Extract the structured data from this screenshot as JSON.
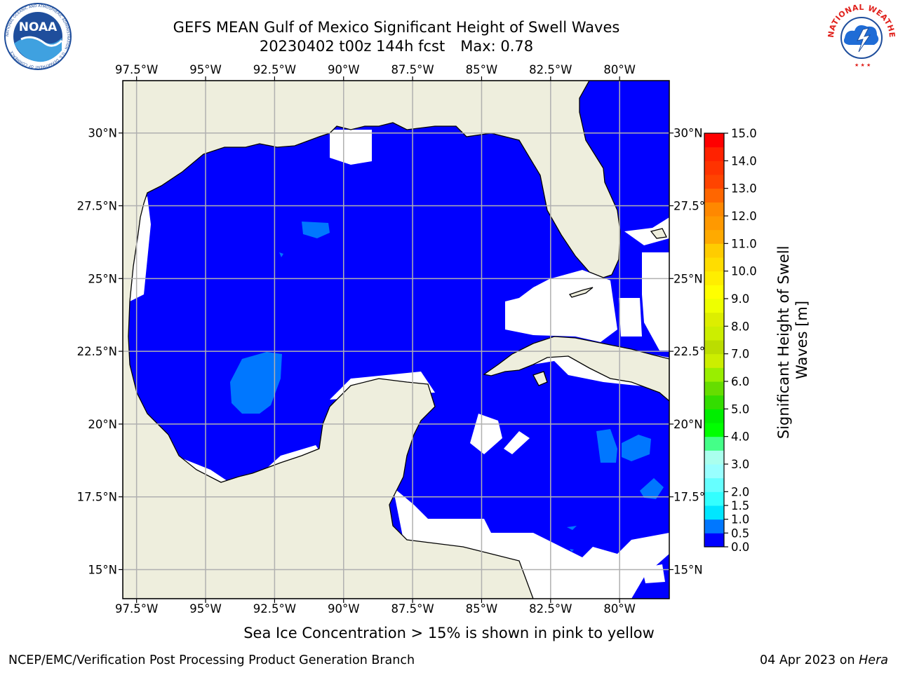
{
  "title": {
    "line1": "GEFS MEAN Gulf of Mexico Significant Height of Swell Waves",
    "line2_date": "20230402 t00z 144h fcst",
    "line2_max": "Max: 0.78"
  },
  "footnote": "Sea Ice Concentration > 15% is shown in pink to yellow",
  "credit_left": "NCEP/EMC/Verification Post Processing Product Generation Branch",
  "credit_right_date": "04 Apr 2023 on",
  "credit_right_machine": "Hera",
  "logos": {
    "noaa": {
      "text": "NOAA",
      "ring_text": "NATIONAL OCEANIC AND ATMOSPHERIC ADMINISTRATION · U.S. DEPARTMENT OF COMMERCE",
      "color": "#1f4e9c"
    },
    "nws": {
      "ring_text": "NATIONAL WEATHER SERVICE",
      "color": "#e0201b"
    }
  },
  "map_data": {
    "projection": "lat-lon",
    "lon_range": [
      -98.0,
      -78.2
    ],
    "lat_range": [
      14.0,
      31.8
    ],
    "lon_ticks": [
      -97.5,
      -95,
      -92.5,
      -90,
      -87.5,
      -85,
      -82.5,
      -80
    ],
    "lon_tick_labels": [
      "97.5°W",
      "95°W",
      "92.5°W",
      "90°W",
      "87.5°W",
      "85°W",
      "82.5°W",
      "80°W"
    ],
    "lat_ticks": [
      30,
      27.5,
      25,
      22.5,
      20,
      17.5,
      15
    ],
    "lat_tick_labels": [
      "30°N",
      "27.5°N",
      "25°N",
      "22.5°N",
      "20°N",
      "17.5°N",
      "15°N"
    ],
    "grid": true,
    "colors": {
      "land": "#eeeedd",
      "missing": "#ffffff",
      "gridline": "#b0b0b0"
    }
  },
  "colorbar": {
    "label": "Significant Height of Swell Waves [m]",
    "levels": [
      0.0,
      0.5,
      1.0,
      1.5,
      2.0,
      2.5,
      3.0,
      3.5,
      4.0,
      4.5,
      5.0,
      5.5,
      6.0,
      6.5,
      7.0,
      7.5,
      8.0,
      8.5,
      9.0,
      9.5,
      10.0,
      10.5,
      11.0,
      11.5,
      12.0,
      12.5,
      13.0,
      13.5,
      14.0,
      14.5,
      15.0
    ],
    "tick_labels": [
      "0.0",
      "0.5",
      "1.0",
      "1.5",
      "2.0",
      "3.0",
      "4.0",
      "5.0",
      "6.0",
      "7.0",
      "8.0",
      "9.0",
      "10.0",
      "11.0",
      "12.0",
      "13.0",
      "14.0",
      "15.0"
    ],
    "tick_values": [
      0.0,
      0.5,
      1.0,
      1.5,
      2.0,
      3.0,
      4.0,
      5.0,
      6.0,
      7.0,
      8.0,
      9.0,
      10.0,
      11.0,
      12.0,
      13.0,
      14.0,
      15.0
    ],
    "colors": [
      "#0000ff",
      "#0077ff",
      "#00e6ff",
      "#33ffff",
      "#66ffff",
      "#99ffff",
      "#aaffee",
      "#44ff88",
      "#00ff00",
      "#00ee00",
      "#33dd00",
      "#66dd00",
      "#99ee00",
      "#ccee00",
      "#bbdd00",
      "#ccee00",
      "#ddee00",
      "#eeff00",
      "#ffff00",
      "#ffee00",
      "#ffdd00",
      "#ffcc00",
      "#ffaa00",
      "#ff9900",
      "#ff8800",
      "#ff6600",
      "#ff4400",
      "#ff3300",
      "#ff2200",
      "#ff0000"
    ]
  }
}
